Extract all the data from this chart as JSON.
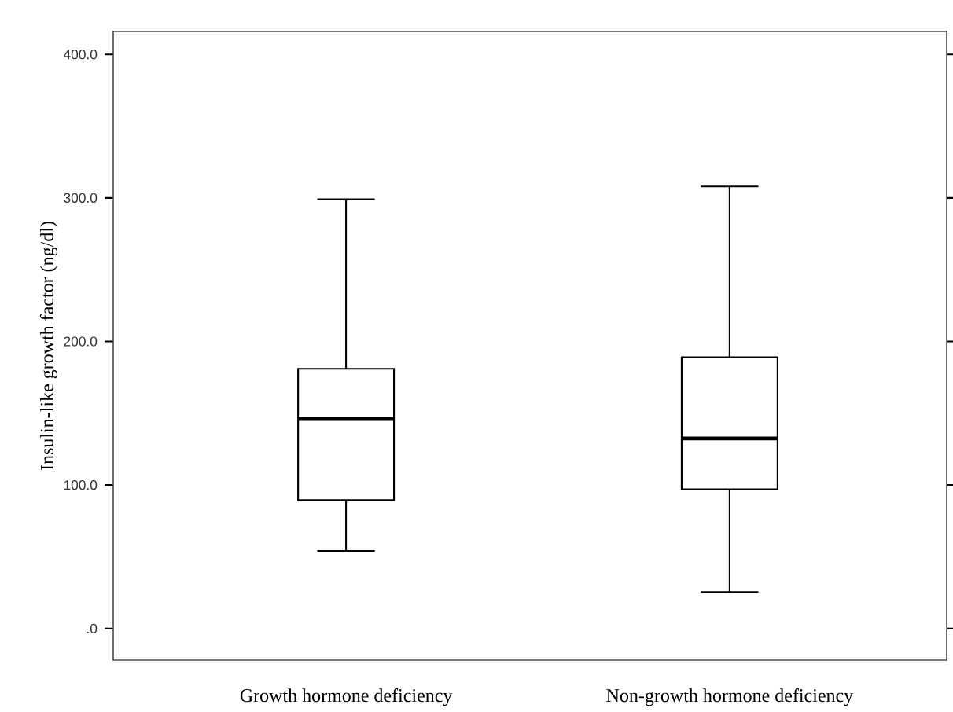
{
  "chart_data": {
    "type": "box",
    "ylabel": "Insulin-like growth factor (ng/dl)",
    "categories": [
      "Growth hormone deficiency",
      "Non-growth hormone deficiency"
    ],
    "boxes": [
      {
        "low": 54,
        "q1": 89.5,
        "median": 146,
        "q3": 181,
        "high": 299
      },
      {
        "low": 25.5,
        "q1": 97,
        "median": 132.5,
        "q3": 189,
        "high": 308
      }
    ],
    "ylim": [
      -22,
      416
    ],
    "yticks": [
      {
        "value": 0,
        "label": ".0"
      },
      {
        "value": 100,
        "label": "100.0"
      },
      {
        "value": 200,
        "label": "200.0"
      },
      {
        "value": 300,
        "label": "300.0"
      },
      {
        "value": 400,
        "label": "400.0"
      }
    ]
  }
}
